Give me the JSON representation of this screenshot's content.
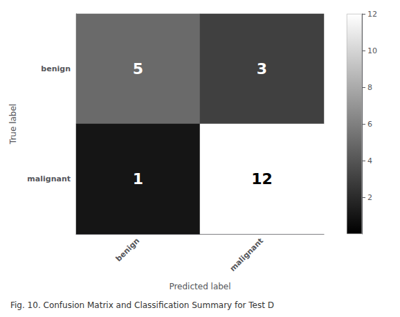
{
  "chart_data": {
    "type": "heatmap",
    "categories": [
      "benign",
      "malignant"
    ],
    "y_categories": [
      "benign",
      "malignant"
    ],
    "matrix": [
      [
        5,
        3
      ],
      [
        1,
        12
      ]
    ],
    "xlabel": "Predicted label",
    "ylabel": "True label",
    "caption": "Fig. 10. Confusion Matrix and Classification Summary for Test D",
    "colorbar_range": [
      0,
      12
    ],
    "colorbar_ticks": [
      2,
      4,
      6,
      8,
      10,
      12
    ],
    "data_labels": true
  }
}
